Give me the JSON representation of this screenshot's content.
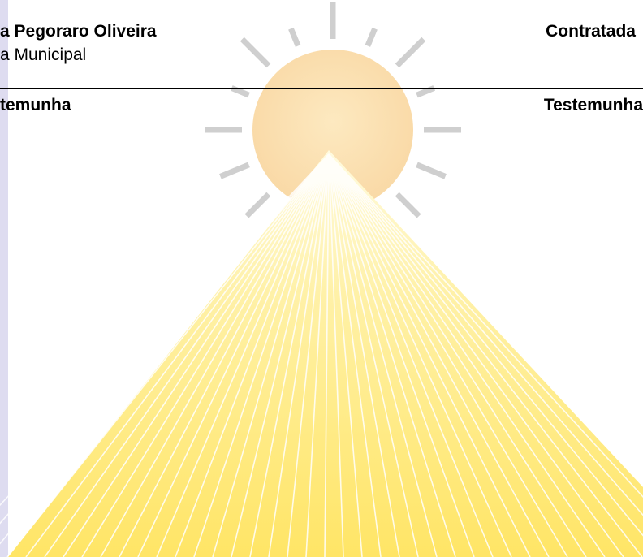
{
  "signature_block": {
    "left_name": "a Pegoraro Oliveira",
    "left_role": "a Municipal",
    "right_label": "Contratada"
  },
  "witness_block": {
    "left_label": "temunha",
    "right_label": "Testemunha"
  }
}
